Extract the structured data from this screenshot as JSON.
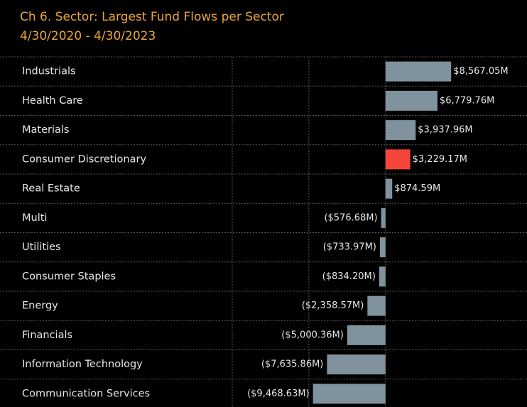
{
  "chart_data": {
    "type": "hbar",
    "title": "Ch 6.  Sector:  Largest Fund Flows per Sector",
    "subtitle": "4/30/2020 - 4/30/2023",
    "categories": [
      "Industrials",
      "Health Care",
      "Materials",
      "Consumer Discretionary",
      "Real Estate",
      "Multi",
      "Utilities",
      "Consumer Staples",
      "Energy",
      "Financials",
      "Information Technology",
      "Communication Services"
    ],
    "values": [
      8567.05,
      6779.76,
      3937.96,
      3229.17,
      874.59,
      -576.68,
      -733.97,
      -834.2,
      -2358.57,
      -5000.36,
      -7635.86,
      -9468.63
    ],
    "value_labels": [
      "$8,567.05M",
      "$6,779.76M",
      "$3,937.96M",
      "$3,229.17M",
      "$874.59M",
      "($576.68M)",
      "($733.97M)",
      "($834.20M)",
      "($2,358.57M)",
      "($5,000.36M)",
      "($7,635.86M)",
      "($9,468.63M)"
    ],
    "colors": [
      "#7f929e",
      "#7f929e",
      "#7f929e",
      "#f4453b",
      "#7f929e",
      "#7f929e",
      "#7f929e",
      "#7f929e",
      "#7f929e",
      "#7f929e",
      "#7f929e",
      "#7f929e"
    ],
    "xlim": [
      -20000,
      18000
    ],
    "xticks": [
      -20000,
      -10000,
      0
    ],
    "grid": true
  }
}
